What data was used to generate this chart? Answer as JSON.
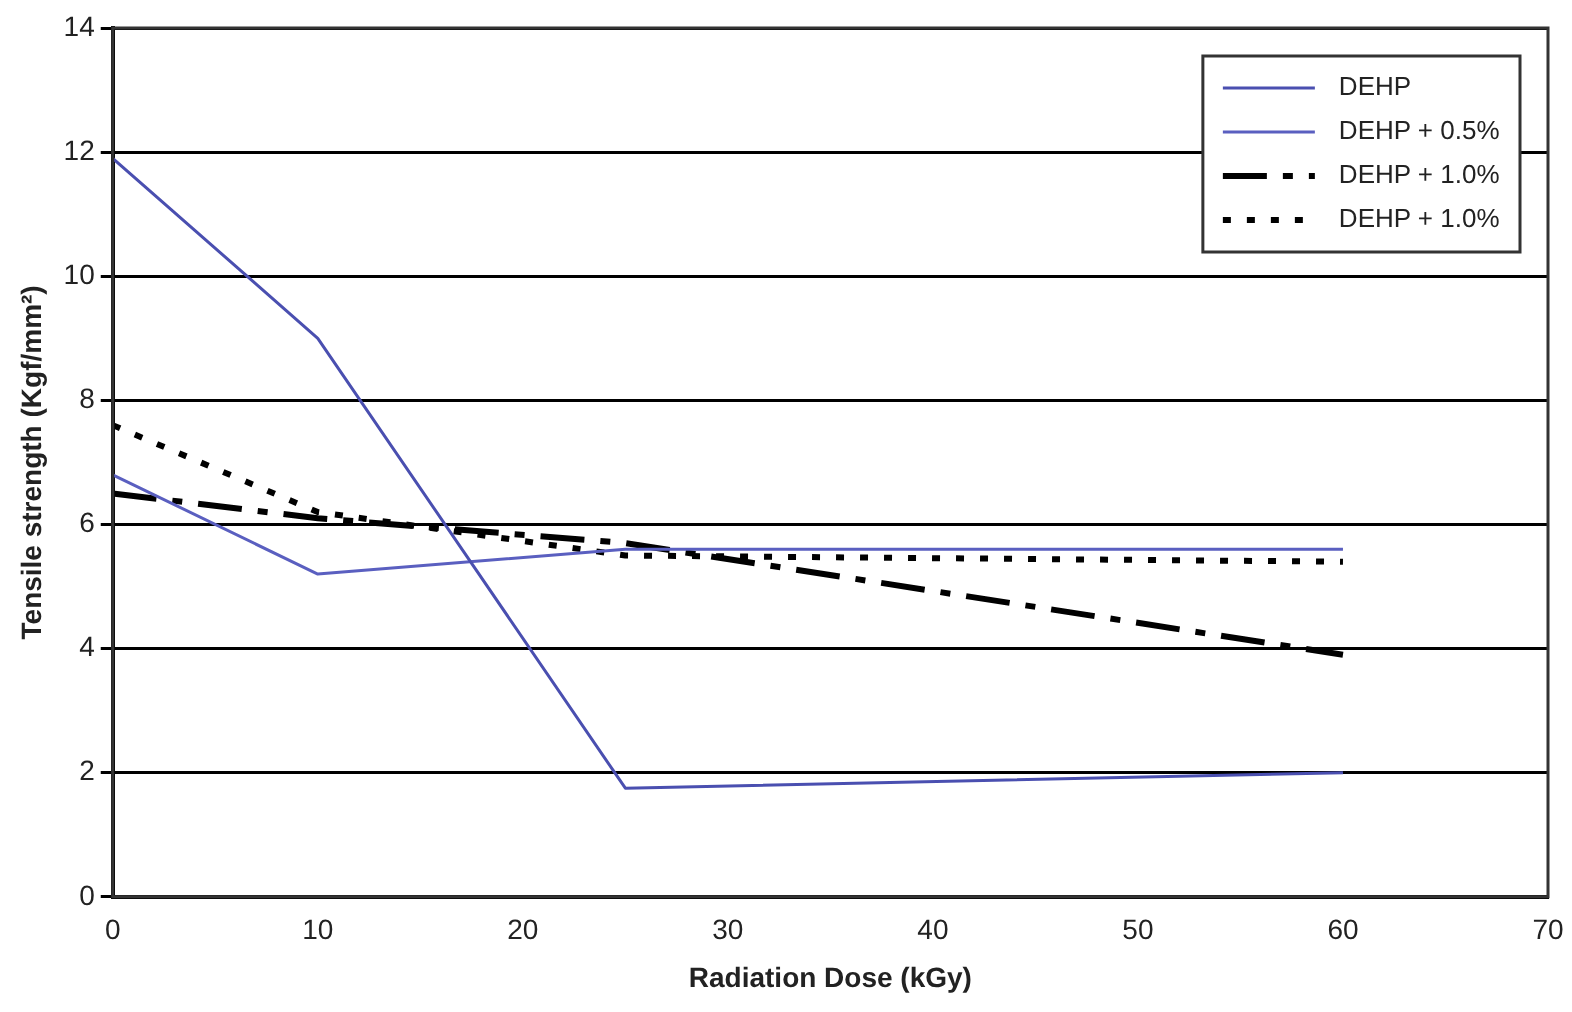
{
  "chart_data": {
    "type": "line",
    "xlabel": "Radiation Dose (kGy)",
    "ylabel": "Tensile strength (Kgf/mm²)",
    "x": [
      0,
      10,
      25,
      60
    ],
    "series": [
      {
        "name": "DEHP",
        "color": "#4a4fb0",
        "values": [
          11.9,
          9,
          1.75,
          2
        ],
        "line_style": "solid"
      },
      {
        "name": "DEHP + 0.5%",
        "color": "#5a5fc0",
        "values": [
          6.8,
          5.2,
          5.6,
          5.6
        ],
        "line_style": "solid"
      },
      {
        "name": "DEHP + 1.0%",
        "color": "#000000",
        "values": [
          6.5,
          6.1,
          5.7,
          3.9
        ],
        "line_style": "dashed"
      },
      {
        "name": "DEHP + 1.0%",
        "color": "#000000",
        "values": [
          7.6,
          6.2,
          5.5,
          5.4
        ],
        "line_style": "dotted"
      }
    ],
    "xlim": [
      0,
      70
    ],
    "xticks": [
      0,
      10,
      20,
      30,
      40,
      50,
      60,
      70
    ],
    "ylim": [
      0,
      14
    ],
    "yticks": [
      0,
      2,
      4,
      6,
      8,
      10,
      12,
      14
    ],
    "grid": "y",
    "legend": "top right",
    "marker": "none"
  }
}
